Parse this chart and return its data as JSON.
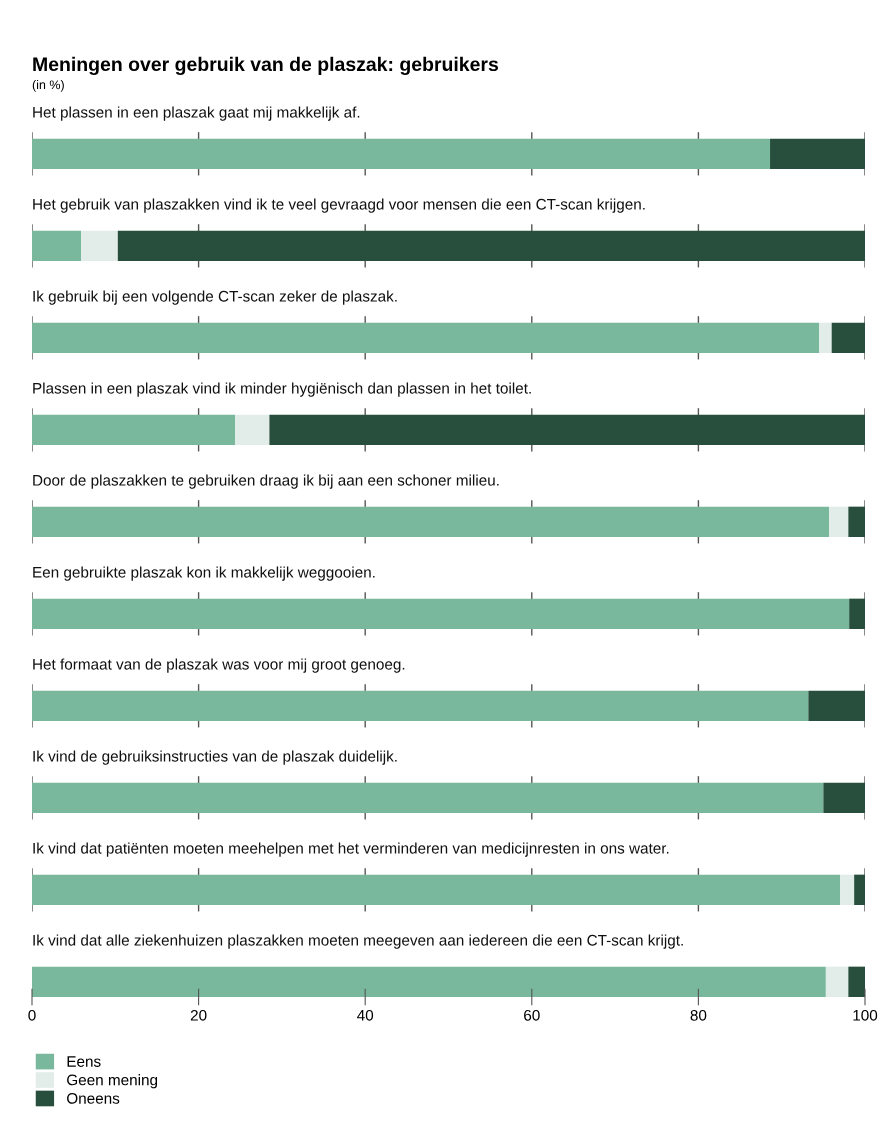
{
  "chart_data": {
    "type": "bar",
    "orientation": "horizontal",
    "stacked": true,
    "title": "Meningen over gebruik van de plaszak: gebruikers",
    "subtitle": "(in %)",
    "categories": [
      "Het plassen in een plaszak gaat mij makkelijk af.",
      "Het gebruik van plaszakken vind ik te veel gevraagd voor mensen die een CT-scan krijgen.",
      "Ik gebruik bij een volgende CT-scan zeker de plaszak.",
      "Plassen in een plaszak vind ik minder hygiënisch dan plassen in het toilet.",
      "Door de plaszakken te gebruiken draag ik bij aan een schoner milieu.",
      "Een gebruikte plaszak kon ik makkelijk weggooien.",
      "Het formaat van de plaszak was voor mij groot genoeg.",
      "Ik vind de gebruiksinstructies van de plaszak duidelijk.",
      "Ik vind dat patiënten moeten meehelpen met het verminderen van medicijnresten in ons water.",
      "Ik vind dat alle ziekenhuizen plaszakken moeten meegeven aan iedereen die een CT-scan krijgt."
    ],
    "series": [
      {
        "name": "Eens",
        "color": "#79b89d",
        "values": [
          88.6,
          5.9,
          94.5,
          24.4,
          95.7,
          98.1,
          93.2,
          95.0,
          97.0,
          95.3
        ]
      },
      {
        "name": "Geen mening",
        "color": "#e2ede9",
        "values": [
          0,
          4.4,
          1.5,
          4.1,
          2.3,
          0,
          0,
          0,
          1.7,
          2.7
        ]
      },
      {
        "name": "Oneens",
        "color": "#284f3d",
        "values": [
          11.4,
          89.7,
          4.0,
          71.5,
          2.0,
          1.9,
          6.8,
          5.0,
          1.3,
          2.0
        ]
      }
    ],
    "xlim": [
      0,
      100
    ],
    "xticks": [
      0,
      20,
      40,
      60,
      80,
      100
    ],
    "grid": false,
    "legend": "bottom left"
  }
}
